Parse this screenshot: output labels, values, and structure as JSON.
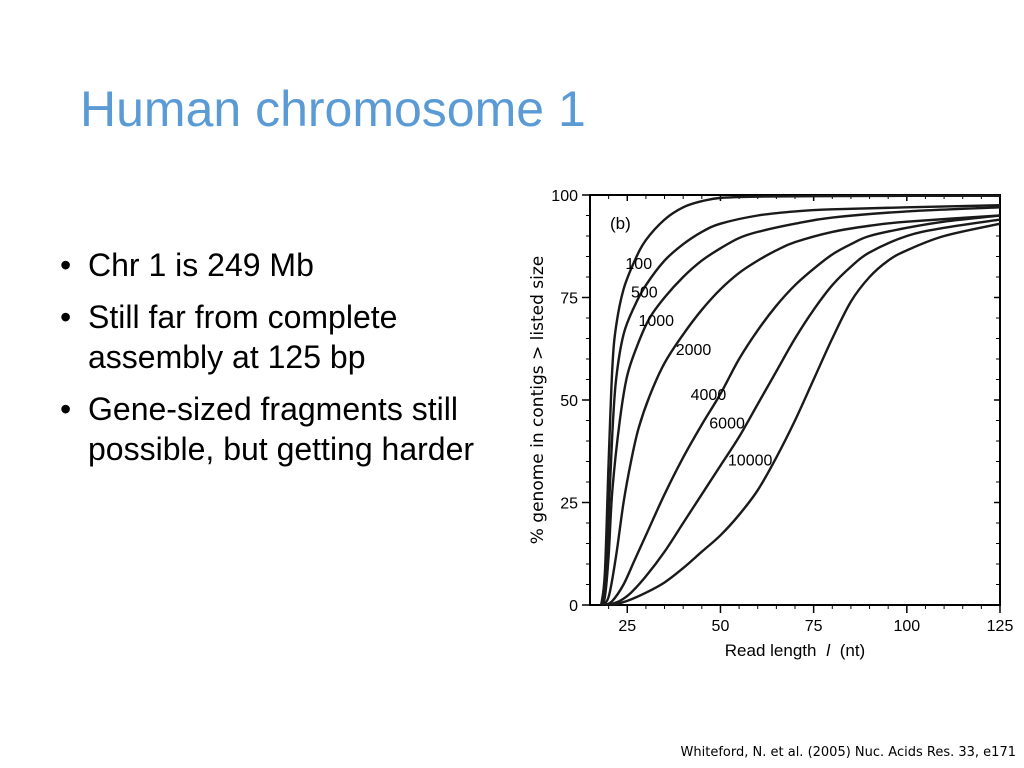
{
  "slide": {
    "title": "Human chromosome 1",
    "bullets": [
      "Chr 1 is 249 Mb",
      "Still far from complete assembly at 125 bp",
      "Gene-sized fragments still possible, but getting harder"
    ],
    "citation": "Whiteford, N. et al. (2005) Nuc. Acids Res. 33, e171"
  },
  "chart_data": {
    "type": "line",
    "panel_label": "(b)",
    "xlabel": "Read length",
    "xlabel_var": "l",
    "xlabel_unit": "(nt)",
    "ylabel": "% genome in contigs > listed size",
    "xlim": [
      15,
      125
    ],
    "ylim": [
      0,
      100
    ],
    "xticks": [
      25,
      50,
      75,
      100,
      125
    ],
    "yticks": [
      0,
      25,
      50,
      75,
      100
    ],
    "grid": false,
    "series": [
      {
        "name": "100",
        "points": [
          [
            18,
            0
          ],
          [
            19,
            8
          ],
          [
            20,
            35
          ],
          [
            21,
            58
          ],
          [
            22,
            68
          ],
          [
            24,
            77
          ],
          [
            27,
            84
          ],
          [
            30,
            89
          ],
          [
            35,
            94
          ],
          [
            40,
            97
          ],
          [
            45,
            98.5
          ],
          [
            50,
            99.3
          ],
          [
            60,
            99.6
          ],
          [
            75,
            99.7
          ],
          [
            100,
            99.8
          ],
          [
            125,
            99.8
          ]
        ]
      },
      {
        "name": "500",
        "points": [
          [
            18,
            0
          ],
          [
            19,
            4
          ],
          [
            20,
            22
          ],
          [
            21,
            42
          ],
          [
            22,
            55
          ],
          [
            24,
            66
          ],
          [
            27,
            73
          ],
          [
            30,
            78
          ],
          [
            35,
            84
          ],
          [
            40,
            88
          ],
          [
            45,
            91
          ],
          [
            50,
            93
          ],
          [
            60,
            95
          ],
          [
            70,
            96
          ],
          [
            80,
            96.5
          ],
          [
            100,
            97
          ],
          [
            125,
            97.5
          ]
        ]
      },
      {
        "name": "1000",
        "points": [
          [
            18,
            0
          ],
          [
            19,
            2
          ],
          [
            20,
            12
          ],
          [
            21,
            28
          ],
          [
            23,
            45
          ],
          [
            25,
            56
          ],
          [
            28,
            64
          ],
          [
            31,
            70
          ],
          [
            35,
            75
          ],
          [
            40,
            80
          ],
          [
            45,
            84
          ],
          [
            50,
            87
          ],
          [
            55,
            89.5
          ],
          [
            60,
            91
          ],
          [
            70,
            93
          ],
          [
            80,
            94.5
          ],
          [
            100,
            96
          ],
          [
            125,
            97
          ]
        ]
      },
      {
        "name": "2000",
        "points": [
          [
            18,
            0
          ],
          [
            20,
            2
          ],
          [
            22,
            12
          ],
          [
            24,
            25
          ],
          [
            26,
            35
          ],
          [
            28,
            43
          ],
          [
            31,
            51
          ],
          [
            35,
            59
          ],
          [
            40,
            66
          ],
          [
            45,
            72
          ],
          [
            50,
            77
          ],
          [
            55,
            81
          ],
          [
            60,
            84
          ],
          [
            65,
            86.5
          ],
          [
            70,
            88.5
          ],
          [
            80,
            91
          ],
          [
            90,
            92.5
          ],
          [
            100,
            93.5
          ],
          [
            125,
            95
          ]
        ]
      },
      {
        "name": "4000",
        "points": [
          [
            19,
            0
          ],
          [
            21,
            1
          ],
          [
            24,
            5
          ],
          [
            27,
            11
          ],
          [
            30,
            17
          ],
          [
            35,
            27
          ],
          [
            40,
            36
          ],
          [
            45,
            44
          ],
          [
            50,
            51.5
          ],
          [
            55,
            60
          ],
          [
            60,
            67
          ],
          [
            65,
            73
          ],
          [
            70,
            78
          ],
          [
            75,
            82
          ],
          [
            80,
            85.5
          ],
          [
            85,
            88
          ],
          [
            90,
            90
          ],
          [
            100,
            92
          ],
          [
            110,
            93.5
          ],
          [
            125,
            95
          ]
        ]
      },
      {
        "name": "6000",
        "points": [
          [
            20,
            0
          ],
          [
            23,
            1
          ],
          [
            26,
            3
          ],
          [
            30,
            7
          ],
          [
            35,
            13
          ],
          [
            40,
            20
          ],
          [
            45,
            27
          ],
          [
            50,
            34
          ],
          [
            55,
            41
          ],
          [
            60,
            49
          ],
          [
            65,
            57
          ],
          [
            70,
            65
          ],
          [
            75,
            72
          ],
          [
            80,
            78
          ],
          [
            85,
            82.5
          ],
          [
            90,
            86
          ],
          [
            100,
            90
          ],
          [
            110,
            92
          ],
          [
            125,
            94
          ]
        ]
      },
      {
        "name": "10000",
        "points": [
          [
            21,
            0
          ],
          [
            25,
            1
          ],
          [
            30,
            3
          ],
          [
            35,
            5.5
          ],
          [
            40,
            9
          ],
          [
            45,
            13
          ],
          [
            50,
            17
          ],
          [
            55,
            22
          ],
          [
            60,
            28
          ],
          [
            65,
            36
          ],
          [
            70,
            45
          ],
          [
            75,
            55
          ],
          [
            80,
            65
          ],
          [
            85,
            74
          ],
          [
            90,
            80
          ],
          [
            95,
            84
          ],
          [
            100,
            86.5
          ],
          [
            110,
            90
          ],
          [
            125,
            93
          ]
        ]
      }
    ],
    "labels": [
      {
        "text": "100",
        "x": 24.5,
        "y": 82
      },
      {
        "text": "500",
        "x": 26,
        "y": 75
      },
      {
        "text": "1000",
        "x": 28,
        "y": 68
      },
      {
        "text": "2000",
        "x": 38,
        "y": 61
      },
      {
        "text": "4000",
        "x": 42,
        "y": 50
      },
      {
        "text": "6000",
        "x": 47,
        "y": 43
      },
      {
        "text": "10000",
        "x": 52,
        "y": 34
      }
    ]
  }
}
